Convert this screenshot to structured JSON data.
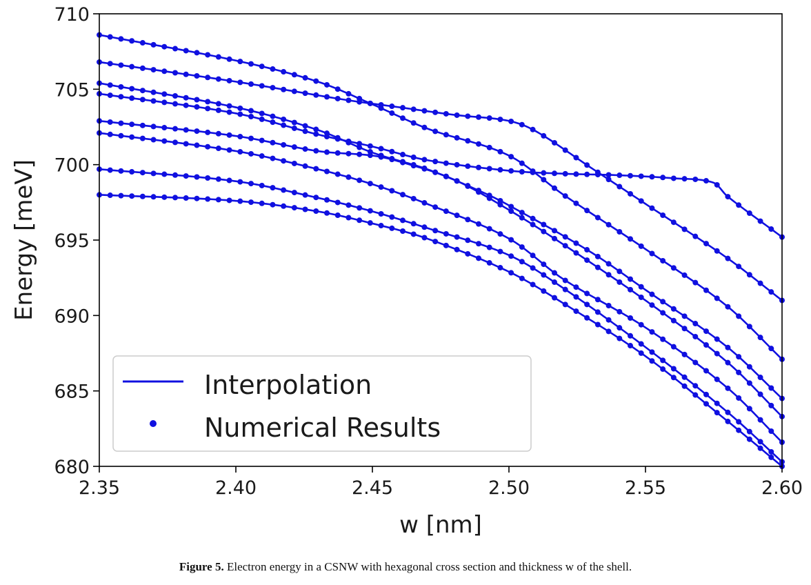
{
  "caption": {
    "label": "Figure 5.",
    "text": " Electron energy in a CSNW with hexagonal cross section and thickness w of the shell."
  },
  "chart_data": {
    "type": "line",
    "xlabel": "w [nm]",
    "ylabel": "Energy [meV]",
    "xlim": [
      2.35,
      2.6
    ],
    "ylim": [
      680,
      710
    ],
    "xticks": [
      "2.35",
      "2.40",
      "2.45",
      "2.50",
      "2.55",
      "2.60"
    ],
    "yticks": [
      "680",
      "685",
      "690",
      "695",
      "700",
      "705",
      "710"
    ],
    "grid": false,
    "color": "#1010e0",
    "legend": {
      "placement": "lower-left",
      "entries": [
        {
          "label": "Interpolation",
          "marker": "line"
        },
        {
          "label": "Numerical Results",
          "marker": "dot"
        }
      ]
    },
    "series": [
      {
        "points": [
          [
            2.35,
            708.6
          ],
          [
            2.4,
            706.9
          ],
          [
            2.43,
            705.5
          ],
          [
            2.45,
            704.0
          ],
          [
            2.47,
            702.4
          ],
          [
            2.5,
            700.6
          ],
          [
            2.52,
            698.0
          ],
          [
            2.55,
            694.4
          ],
          [
            2.58,
            690.6
          ],
          [
            2.6,
            687.1
          ]
        ]
      },
      {
        "points": [
          [
            2.35,
            706.8
          ],
          [
            2.4,
            705.5
          ],
          [
            2.44,
            704.3
          ],
          [
            2.46,
            703.8
          ],
          [
            2.48,
            703.3
          ],
          [
            2.5,
            702.9
          ],
          [
            2.51,
            702.2
          ],
          [
            2.53,
            699.8
          ],
          [
            2.55,
            697.4
          ],
          [
            2.58,
            693.8
          ],
          [
            2.6,
            691.0
          ]
        ]
      },
      {
        "points": [
          [
            2.35,
            705.4
          ],
          [
            2.4,
            703.8
          ],
          [
            2.43,
            702.3
          ],
          [
            2.45,
            700.8
          ],
          [
            2.47,
            699.7
          ],
          [
            2.49,
            698.2
          ],
          [
            2.5,
            697.3
          ],
          [
            2.53,
            694.2
          ],
          [
            2.55,
            691.7
          ],
          [
            2.58,
            687.9
          ],
          [
            2.6,
            684.5
          ]
        ]
      },
      {
        "points": [
          [
            2.35,
            704.7
          ],
          [
            2.4,
            703.4
          ],
          [
            2.43,
            702.0
          ],
          [
            2.45,
            701.2
          ],
          [
            2.47,
            700.3
          ],
          [
            2.5,
            699.6
          ],
          [
            2.52,
            699.4
          ],
          [
            2.54,
            699.3
          ],
          [
            2.56,
            699.1
          ],
          [
            2.575,
            698.8
          ],
          [
            2.58,
            697.9
          ],
          [
            2.6,
            695.2
          ]
        ]
      },
      {
        "points": [
          [
            2.35,
            702.9
          ],
          [
            2.4,
            701.9
          ],
          [
            2.43,
            700.9
          ],
          [
            2.45,
            700.6
          ],
          [
            2.46,
            700.2
          ],
          [
            2.48,
            699.0
          ],
          [
            2.5,
            697.0
          ],
          [
            2.52,
            694.7
          ],
          [
            2.55,
            691.0
          ],
          [
            2.58,
            686.9
          ],
          [
            2.6,
            683.3
          ]
        ]
      },
      {
        "points": [
          [
            2.35,
            702.1
          ],
          [
            2.4,
            700.9
          ],
          [
            2.43,
            699.7
          ],
          [
            2.45,
            698.7
          ],
          [
            2.47,
            697.4
          ],
          [
            2.5,
            695.1
          ],
          [
            2.52,
            692.4
          ],
          [
            2.55,
            689.2
          ],
          [
            2.58,
            685.2
          ],
          [
            2.6,
            681.6
          ]
        ]
      },
      {
        "points": [
          [
            2.35,
            699.7
          ],
          [
            2.4,
            698.9
          ],
          [
            2.43,
            697.8
          ],
          [
            2.45,
            696.9
          ],
          [
            2.47,
            695.8
          ],
          [
            2.5,
            694.0
          ],
          [
            2.52,
            691.8
          ],
          [
            2.55,
            687.9
          ],
          [
            2.58,
            683.6
          ],
          [
            2.6,
            680.3
          ]
        ]
      },
      {
        "points": [
          [
            2.35,
            698.0
          ],
          [
            2.4,
            697.6
          ],
          [
            2.43,
            696.9
          ],
          [
            2.45,
            696.1
          ],
          [
            2.47,
            695.1
          ],
          [
            2.5,
            692.9
          ],
          [
            2.52,
            690.8
          ],
          [
            2.55,
            687.3
          ],
          [
            2.58,
            683.0
          ],
          [
            2.6,
            680.0
          ]
        ]
      }
    ]
  }
}
